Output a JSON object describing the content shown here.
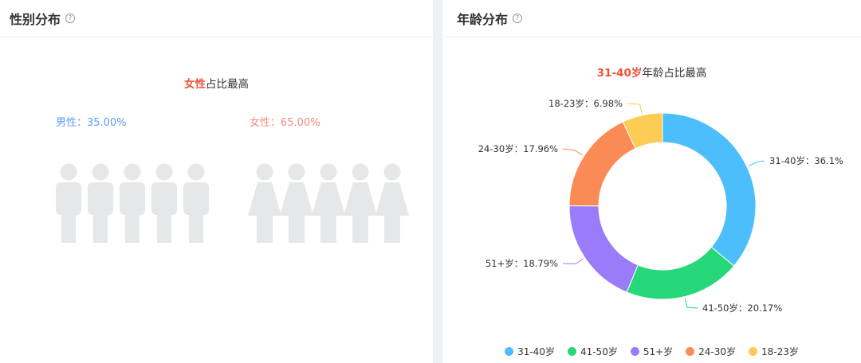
{
  "gender_panel": {
    "title": "性别分布",
    "help_icon": "question-circle-icon",
    "headline_highlight": "女性",
    "headline_rest": "占比最高",
    "male_label": "男性：35.00%",
    "female_label": "女性：65.00%"
  },
  "age_panel": {
    "title": "年龄分布",
    "help_icon": "question-circle-icon",
    "headline_highlight": "31-40岁",
    "headline_rest": "年龄占比最高"
  },
  "chart_data": [
    {
      "type": "pictogram",
      "title": "性别分布",
      "icons_per_group": 5,
      "series": [
        {
          "name": "男性",
          "value": 35.0,
          "color": "#5b9bf5",
          "icon": "male-person-icon"
        },
        {
          "name": "女性",
          "value": 65.0,
          "color": "#f58b80",
          "icon": "female-person-icon"
        }
      ],
      "empty_color": "#e6e7e9"
    },
    {
      "type": "pie",
      "variant": "donut",
      "title": "年龄分布",
      "categories": [
        "31-40岁",
        "41-50岁",
        "51+岁",
        "24-30岁",
        "18-23岁"
      ],
      "values": [
        36.1,
        20.17,
        18.79,
        17.96,
        6.98
      ],
      "labels": [
        "31-40岁：36.1%",
        "41-50岁：20.17%",
        "51+岁：18.79%",
        "24-30岁：17.96%",
        "18-23岁：6.98%"
      ],
      "colors": [
        "#4dbefc",
        "#27d87a",
        "#9a7cfb",
        "#fb8b56",
        "#fccc55"
      ],
      "legend": "bottom"
    }
  ]
}
